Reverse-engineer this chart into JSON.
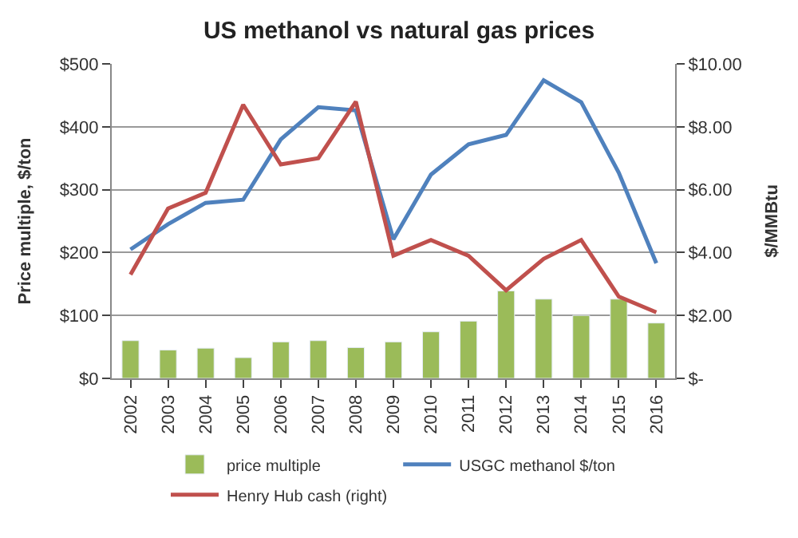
{
  "chart_data": {
    "type": "bar",
    "title": "US methanol vs natural gas prices",
    "ylabel": "Price multiple, $/ton",
    "y2label": "$/MMBtu",
    "categories": [
      "2002",
      "2003",
      "2004",
      "2005",
      "2006",
      "2007",
      "2008",
      "2009",
      "2010",
      "2011",
      "2012",
      "2013",
      "2014",
      "2015",
      "2016"
    ],
    "series": [
      {
        "name": "price multiple",
        "color": "#9bbb59",
        "values": [
          60,
          45,
          48,
          33,
          58,
          60,
          49,
          58,
          74,
          91,
          139,
          126,
          100,
          126,
          88
        ]
      },
      {
        "name": "USGC methanol $/ton",
        "type": "line",
        "color": "#4f81bd",
        "values": [
          205,
          245,
          279,
          284,
          380,
          431,
          426,
          221,
          324,
          372,
          387,
          474,
          439,
          327,
          183
        ]
      },
      {
        "name": "Henry Hub cash (right)",
        "type": "line",
        "axis": "y2",
        "color": "#c0504d",
        "values": [
          3.3,
          5.4,
          5.9,
          8.7,
          6.8,
          7.0,
          8.8,
          3.9,
          4.4,
          3.9,
          2.8,
          3.8,
          4.4,
          2.6,
          2.1
        ]
      }
    ],
    "ylim": [
      0,
      500
    ],
    "yticks": [
      {
        "value": 0,
        "label": "$0"
      },
      {
        "value": 100,
        "label": "$100"
      },
      {
        "value": 200,
        "label": "$200"
      },
      {
        "value": 300,
        "label": "$300"
      },
      {
        "value": 400,
        "label": "$400"
      },
      {
        "value": 500,
        "label": "$500"
      }
    ],
    "y2lim": [
      0,
      10
    ],
    "y2ticks": [
      {
        "value": 0,
        "label": "$-"
      },
      {
        "value": 2,
        "label": "$2.00"
      },
      {
        "value": 4,
        "label": "$4.00"
      },
      {
        "value": 6,
        "label": "$6.00"
      },
      {
        "value": 8,
        "label": "$8.00"
      },
      {
        "value": 10,
        "label": "$10.00"
      }
    ],
    "grid": "y",
    "legend": "bottom",
    "marker": "none",
    "line_style": "solid"
  }
}
